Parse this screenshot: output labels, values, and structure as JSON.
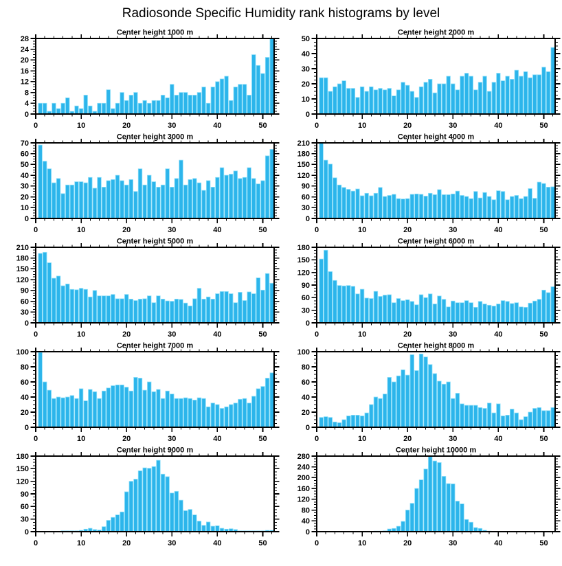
{
  "page": {
    "title": "Radiosonde Specific Humidity rank histograms by level"
  },
  "colors": {
    "bar_fill": "#2CB5EB",
    "bar_edge": "#8FDFF9",
    "axis": "#000000",
    "background": "#FFFFFF",
    "text": "#000000"
  },
  "chart_data": {
    "type": "bar",
    "title": "Radiosonde Specific Humidity rank histograms by level",
    "xlabel": "",
    "ylabel": "",
    "x_description": "rank bins 1-52",
    "layout": {
      "rows": 5,
      "cols": 2,
      "x_range": [
        0,
        52.5
      ],
      "x_major_ticks": [
        0,
        10,
        20,
        30,
        40,
        50
      ],
      "x_minor_step": 2,
      "grid": false,
      "legend": false,
      "tick_direction": "out"
    },
    "panels": [
      {
        "title": "Center height 1000 m",
        "ylim": [
          0,
          28
        ],
        "ytick_step": 4,
        "values": [
          4,
          4,
          1,
          4,
          2,
          4,
          6,
          1,
          3,
          2,
          7,
          3,
          1,
          4,
          4,
          9,
          2,
          4,
          8,
          5,
          7,
          8,
          4,
          5,
          4,
          5,
          5,
          7,
          6,
          11,
          7,
          8,
          8,
          7,
          7,
          8,
          10,
          4,
          10,
          12,
          13,
          14,
          5,
          10,
          11,
          11,
          7,
          22,
          18,
          15,
          21,
          28
        ]
      },
      {
        "title": "Center height 2000 m",
        "ylim": [
          0,
          50
        ],
        "ytick_step": 10,
        "values": [
          24,
          24,
          15,
          18,
          20,
          22,
          17,
          17,
          11,
          18,
          15,
          18,
          16,
          17,
          16,
          17,
          12,
          16,
          21,
          19,
          15,
          11,
          18,
          21,
          23,
          14,
          20,
          20,
          25,
          20,
          16,
          25,
          27,
          25,
          16,
          21,
          25,
          15,
          21,
          27,
          22,
          25,
          23,
          29,
          25,
          28,
          24,
          26,
          26,
          31,
          28,
          44
        ]
      },
      {
        "title": "Center height 3000 m",
        "ylim": [
          0,
          70
        ],
        "ytick_step": 10,
        "values": [
          68,
          53,
          46,
          33,
          37,
          23,
          31,
          31,
          34,
          34,
          33,
          38,
          28,
          38,
          29,
          35,
          36,
          40,
          35,
          31,
          36,
          25,
          46,
          31,
          40,
          34,
          29,
          31,
          46,
          29,
          37,
          54,
          31,
          36,
          37,
          33,
          26,
          35,
          29,
          38,
          47,
          40,
          41,
          44,
          37,
          38,
          47,
          37,
          32,
          35,
          58,
          64
        ]
      },
      {
        "title": "Center height 4000 m",
        "ylim": [
          0,
          210
        ],
        "ytick_step": 30,
        "values": [
          210,
          162,
          151,
          113,
          93,
          86,
          81,
          76,
          82,
          63,
          70,
          63,
          70,
          86,
          61,
          64,
          67,
          55,
          54,
          55,
          67,
          68,
          67,
          62,
          70,
          66,
          80,
          66,
          66,
          68,
          76,
          64,
          61,
          55,
          75,
          57,
          72,
          61,
          52,
          77,
          75,
          52,
          61,
          64,
          55,
          61,
          83,
          56,
          101,
          97,
          87,
          88
        ]
      },
      {
        "title": "Center height 5000 m",
        "ylim": [
          0,
          210
        ],
        "ytick_step": 30,
        "values": [
          193,
          196,
          167,
          124,
          130,
          103,
          108,
          93,
          92,
          96,
          93,
          72,
          90,
          75,
          75,
          75,
          79,
          67,
          67,
          79,
          66,
          62,
          66,
          67,
          75,
          56,
          75,
          66,
          61,
          60,
          66,
          65,
          55,
          47,
          67,
          96,
          66,
          72,
          66,
          81,
          87,
          87,
          81,
          56,
          85,
          62,
          86,
          81,
          125,
          91,
          137,
          110
        ]
      },
      {
        "title": "Center height 6000 m",
        "ylim": [
          0,
          180
        ],
        "ytick_step": 30,
        "values": [
          152,
          173,
          122,
          101,
          89,
          88,
          89,
          87,
          69,
          80,
          59,
          58,
          75,
          63,
          66,
          67,
          48,
          58,
          53,
          55,
          51,
          43,
          67,
          60,
          69,
          45,
          64,
          56,
          38,
          52,
          48,
          48,
          53,
          48,
          37,
          51,
          45,
          42,
          40,
          45,
          53,
          51,
          46,
          48,
          38,
          37,
          47,
          52,
          56,
          78,
          72,
          86
        ]
      },
      {
        "title": "Center height 7000 m",
        "ylim": [
          0,
          100
        ],
        "ytick_step": 20,
        "values": [
          99,
          60,
          49,
          38,
          40,
          39,
          40,
          42,
          38,
          51,
          35,
          50,
          47,
          38,
          48,
          52,
          55,
          56,
          56,
          53,
          48,
          66,
          65,
          49,
          60,
          47,
          50,
          38,
          48,
          44,
          38,
          38,
          39,
          38,
          36,
          39,
          38,
          27,
          32,
          30,
          25,
          27,
          30,
          32,
          37,
          38,
          32,
          41,
          51,
          54,
          65,
          72
        ]
      },
      {
        "title": "Center height 8000 m",
        "ylim": [
          0,
          100
        ],
        "ytick_step": 20,
        "values": [
          13,
          14,
          13,
          7,
          6,
          10,
          15,
          16,
          16,
          15,
          19,
          30,
          40,
          38,
          44,
          66,
          60,
          68,
          76,
          69,
          96,
          75,
          97,
          93,
          83,
          71,
          61,
          57,
          60,
          38,
          45,
          31,
          29,
          29,
          29,
          26,
          25,
          32,
          19,
          31,
          15,
          16,
          24,
          19,
          10,
          14,
          20,
          25,
          26,
          22,
          22,
          26
        ]
      },
      {
        "title": "Center height 9000 m",
        "ylim": [
          0,
          180
        ],
        "ytick_step": 30,
        "values": [
          1,
          1,
          1,
          1,
          1,
          2,
          2,
          2,
          2,
          3,
          6,
          8,
          5,
          4,
          12,
          27,
          34,
          40,
          47,
          95,
          120,
          125,
          145,
          152,
          151,
          155,
          170,
          137,
          131,
          92,
          96,
          75,
          50,
          53,
          40,
          25,
          15,
          23,
          13,
          14,
          8,
          6,
          7,
          5,
          2,
          2,
          2,
          2,
          2,
          2,
          3,
          3
        ]
      },
      {
        "title": "Center height 10000 m",
        "ylim": [
          0,
          280
        ],
        "ytick_step": 40,
        "values": [
          0,
          0,
          0,
          0,
          0,
          0,
          0,
          0,
          0,
          0,
          1,
          1,
          2,
          2,
          3,
          10,
          12,
          20,
          38,
          80,
          105,
          160,
          192,
          232,
          278,
          262,
          256,
          205,
          178,
          177,
          113,
          103,
          45,
          35,
          15,
          12,
          5,
          2,
          1,
          1,
          1,
          0,
          0,
          0,
          0,
          0,
          0,
          0,
          0,
          0,
          0,
          0
        ]
      }
    ]
  }
}
